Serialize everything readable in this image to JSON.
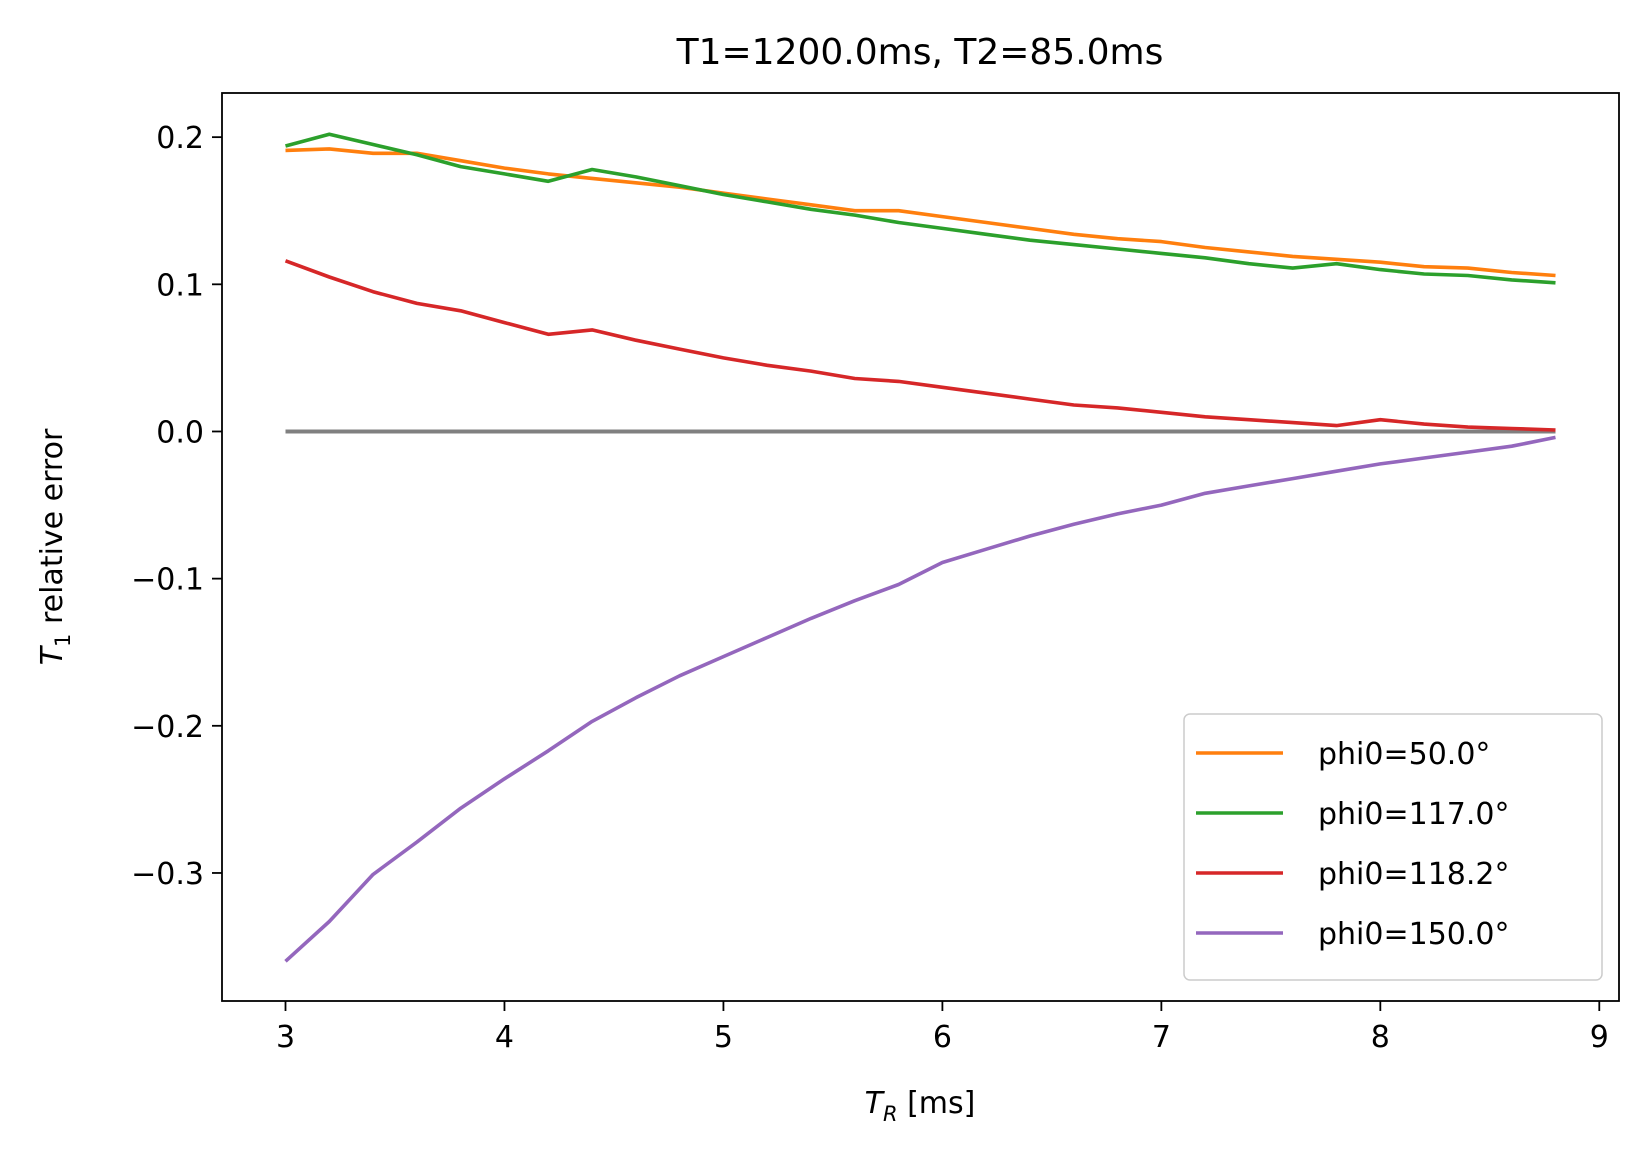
{
  "chart_data": {
    "type": "line",
    "title": "T1=1200.0ms, T2=85.0ms",
    "xlabel": "[ms]",
    "xlabel_symbol": "T",
    "xlabel_sub": "R",
    "ylabel": "relative error",
    "ylabel_symbol": "T",
    "ylabel_sub": "1",
    "xlim": [
      2.71,
      9.09
    ],
    "ylim": [
      -0.387,
      0.23
    ],
    "xticks": [
      3,
      4,
      5,
      6,
      7,
      8,
      9
    ],
    "xtick_labels": [
      "3",
      "4",
      "5",
      "6",
      "7",
      "8",
      "9"
    ],
    "yticks": [
      0.2,
      0.1,
      0.0,
      -0.1,
      -0.2,
      -0.3
    ],
    "ytick_labels": [
      "0.2",
      "0.1",
      "0.0",
      "−0.1",
      "−0.2",
      "−0.3"
    ],
    "legend_position": "lower-right",
    "x": [
      3.0,
      3.2,
      3.4,
      3.6,
      3.8,
      4.0,
      4.2,
      4.4,
      4.6,
      4.8,
      5.0,
      5.2,
      5.4,
      5.6,
      5.8,
      6.0,
      6.2,
      6.4,
      6.6,
      6.8,
      7.0,
      7.2,
      7.4,
      7.6,
      7.8,
      8.0,
      8.2,
      8.4,
      8.6,
      8.8
    ],
    "reference_line": {
      "name": "zero",
      "color": "#808080",
      "values": [
        0,
        0,
        0,
        0,
        0,
        0,
        0,
        0,
        0,
        0,
        0,
        0,
        0,
        0,
        0,
        0,
        0,
        0,
        0,
        0,
        0,
        0,
        0,
        0,
        0,
        0,
        0,
        0,
        0,
        0
      ]
    },
    "series": [
      {
        "name": "phi0=50.0°",
        "color": "#ff7f0e",
        "values": [
          0.191,
          0.192,
          0.189,
          0.189,
          0.184,
          0.179,
          0.175,
          0.172,
          0.169,
          0.166,
          0.162,
          0.158,
          0.154,
          0.15,
          0.15,
          0.146,
          0.142,
          0.138,
          0.134,
          0.131,
          0.129,
          0.125,
          0.122,
          0.119,
          0.117,
          0.115,
          0.112,
          0.111,
          0.108,
          0.106
        ]
      },
      {
        "name": "phi0=117.0°",
        "color": "#2ca02c",
        "values": [
          0.194,
          0.202,
          0.195,
          0.188,
          0.18,
          0.175,
          0.17,
          0.178,
          0.173,
          0.167,
          0.161,
          0.156,
          0.151,
          0.147,
          0.142,
          0.138,
          0.134,
          0.13,
          0.127,
          0.124,
          0.121,
          0.118,
          0.114,
          0.111,
          0.114,
          0.11,
          0.107,
          0.106,
          0.103,
          0.101
        ]
      },
      {
        "name": "phi0=118.2°",
        "color": "#d62728",
        "values": [
          0.116,
          0.105,
          0.095,
          0.087,
          0.082,
          0.074,
          0.066,
          0.069,
          0.062,
          0.056,
          0.05,
          0.045,
          0.041,
          0.036,
          0.034,
          0.03,
          0.026,
          0.022,
          0.018,
          0.016,
          0.013,
          0.01,
          0.008,
          0.006,
          0.004,
          0.008,
          0.005,
          0.003,
          0.002,
          0.001
        ]
      },
      {
        "name": "phi0=150.0°",
        "color": "#9467bd",
        "values": [
          -0.36,
          -0.333,
          -0.301,
          -0.279,
          -0.256,
          -0.236,
          -0.217,
          -0.197,
          -0.181,
          -0.166,
          -0.153,
          -0.14,
          -0.127,
          -0.115,
          -0.104,
          -0.089,
          -0.08,
          -0.071,
          -0.063,
          -0.056,
          -0.05,
          -0.042,
          -0.037,
          -0.032,
          -0.027,
          -0.022,
          -0.018,
          -0.014,
          -0.01,
          -0.004
        ]
      }
    ]
  }
}
